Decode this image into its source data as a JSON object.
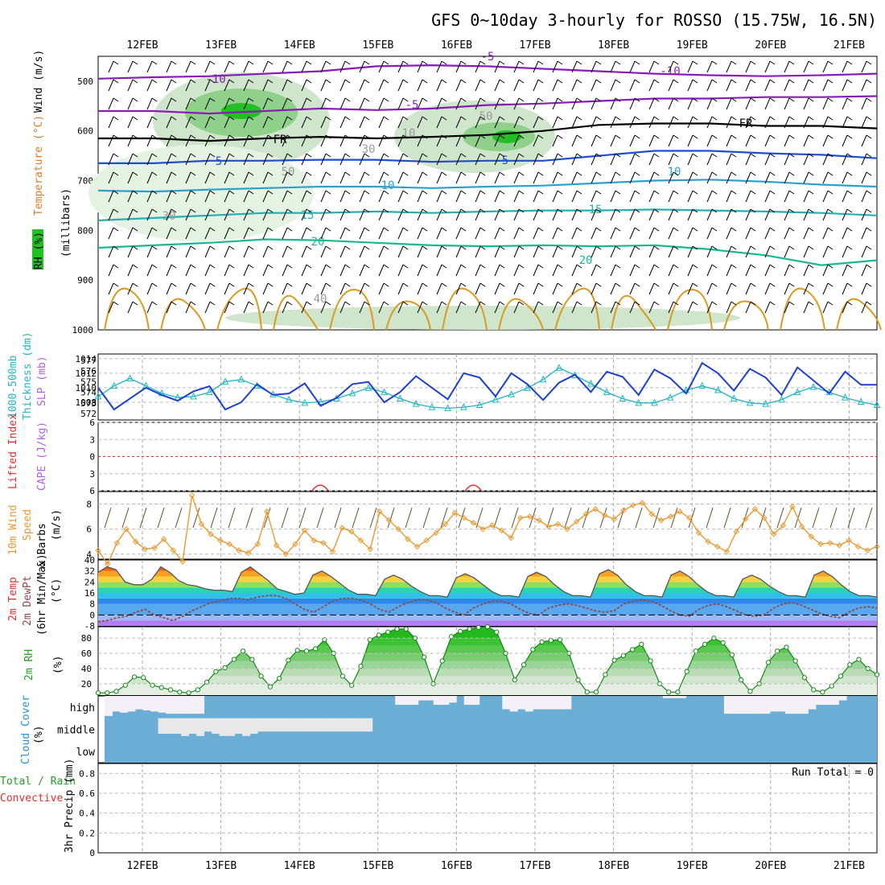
{
  "title": "GFS 0~10day 3-hourly for ROSSO (15.75W, 16.5N)",
  "dates": [
    "12FEB",
    "13FEB",
    "14FEB",
    "15FEB",
    "16FEB",
    "17FEB",
    "18FEB",
    "19FEB",
    "20FEB",
    "21FEB"
  ],
  "colors": {
    "thickness": "#22b5c4",
    "slp": "#1f3fcf",
    "li": "#e03030",
    "cape": "#b060e0",
    "wind10": "#e89a30",
    "rh_fill": "#22c022",
    "cloud": "#6aaed6",
    "temp_dark": "#888888"
  },
  "chart_data": [
    {
      "type": "contour-section",
      "panel": "upper_air",
      "ylabel_parts": [
        "RH (%)",
        "Temperature (°C)",
        "Wind (m/s)"
      ],
      "ylabel_mb": "(millibars)",
      "y_axis_mb": [
        "500",
        "600",
        "700",
        "800",
        "900",
        "1000"
      ],
      "ylim": [
        450,
        1000
      ],
      "temperature_contours": [
        {
          "label": "-10",
          "level_mb": [
            495,
            492,
            490,
            485,
            480,
            470,
            468,
            470,
            475,
            480,
            485,
            488,
            490,
            488,
            485
          ]
        },
        {
          "label": "-5",
          "level_mb": [
            560,
            560,
            565,
            560,
            555,
            558,
            555,
            548,
            545,
            540,
            535,
            535,
            532,
            532,
            530
          ]
        },
        {
          "label": "FR",
          "level_mb": [
            615,
            615,
            620,
            615,
            612,
            615,
            612,
            608,
            600,
            588,
            585,
            585,
            590,
            590,
            595
          ]
        },
        {
          "label": "5",
          "level_mb": [
            665,
            665,
            660,
            660,
            658,
            658,
            662,
            660,
            660,
            650,
            640,
            640,
            645,
            648,
            655
          ]
        },
        {
          "label": "10",
          "level_mb": [
            720,
            722,
            718,
            715,
            712,
            712,
            715,
            712,
            710,
            705,
            700,
            698,
            702,
            708,
            712
          ]
        },
        {
          "label": "15",
          "level_mb": [
            780,
            775,
            770,
            765,
            765,
            762,
            765,
            762,
            760,
            760,
            758,
            760,
            762,
            765,
            770
          ]
        },
        {
          "label": "20",
          "level_mb": [
            835,
            830,
            825,
            818,
            820,
            825,
            830,
            832,
            830,
            832,
            830,
            838,
            850,
            870,
            860
          ]
        }
      ],
      "contour_labels": [
        "-10",
        "-5",
        "FR",
        "5",
        "10",
        "15",
        "20",
        "20",
        "-10",
        "-5",
        "FR",
        "5",
        "10",
        "15",
        "50",
        "30",
        "30",
        "50",
        "10",
        "40"
      ],
      "rh_labels": [
        "30",
        "50",
        "30",
        "50",
        "10",
        "40"
      ]
    },
    {
      "type": "line",
      "panel": "thickness_slp",
      "ylabel_parts": [
        "1000-500mb",
        "Thickness (dm)",
        "SLP (mb)"
      ],
      "thickness_ticks": [
        "572",
        "573",
        "574",
        "575",
        "576",
        "577"
      ],
      "slp_ticks": [
        "1008",
        "1010",
        "1012",
        "1014"
      ],
      "thickness_dm": [
        573.6,
        574.6,
        575.3,
        574.6,
        573.9,
        573.5,
        573.6,
        574.0,
        575.0,
        575.2,
        574.6,
        573.8,
        573.3,
        573.0,
        573.1,
        573.4,
        573.9,
        574.4,
        574.0,
        573.4,
        572.9,
        572.6,
        572.5,
        572.6,
        572.8,
        573.3,
        573.8,
        574.4,
        575.2,
        576.3,
        575.6,
        574.8,
        574.0,
        573.4,
        573.0,
        573.0,
        573.5,
        574.2,
        574.6,
        574.2,
        573.4,
        573.0,
        572.9,
        573.3,
        574.0,
        574.5,
        574.0,
        573.5,
        573.1,
        572.8
      ],
      "slp_mb": [
        1010.0,
        1007.0,
        1008.5,
        1010.0,
        1009.0,
        1008.2,
        1009.5,
        1010.2,
        1007.0,
        1008.0,
        1010.5,
        1009.0,
        1009.2,
        1010.6,
        1007.5,
        1008.6,
        1010.5,
        1010.8,
        1008.0,
        1009.4,
        1011.6,
        1010.0,
        1008.4,
        1012.0,
        1011.4,
        1008.8,
        1012.0,
        1010.5,
        1008.3,
        1010.7,
        1011.8,
        1009.4,
        1012.2,
        1011.5,
        1009.0,
        1012.5,
        1011.3,
        1009.2,
        1013.4,
        1012.0,
        1009.6,
        1012.6,
        1011.4,
        1009.0,
        1012.8,
        1011.0,
        1009.2,
        1012.2,
        1010.4,
        1010.4
      ]
    },
    {
      "type": "line",
      "panel": "stability",
      "ylabel_parts": [
        "Lifted Index",
        "CAPE (J/kg)"
      ],
      "li_ticks": [
        "-6",
        "-3",
        "0",
        "3",
        "6"
      ],
      "li_zero_line": 0,
      "cape_bumps_at_days": [
        2.65,
        4.6
      ],
      "cape_values": [
        0,
        0,
        0,
        0,
        0,
        0,
        0,
        0,
        0,
        0
      ]
    },
    {
      "type": "line",
      "panel": "wind10m",
      "ylabel_parts": [
        "10m Wind",
        "Speed",
        "(m/s)",
        "& Barbs"
      ],
      "ticks": [
        "4",
        "6",
        "8"
      ],
      "ylim": [
        3.6,
        9
      ],
      "speed_ms": [
        4.3,
        3.2,
        4.9,
        6.0,
        5.0,
        4.4,
        4.5,
        5.2,
        4.3,
        3.4,
        8.7,
        6.4,
        5.6,
        5.1,
        4.8,
        4.3,
        4.1,
        4.8,
        7.4,
        4.7,
        4.0,
        4.8,
        5.9,
        5.1,
        4.9,
        4.2,
        6.1,
        5.8,
        5.1,
        4.4,
        7.4,
        6.7,
        6.0,
        5.2,
        4.6,
        5.1,
        5.7,
        6.4,
        7.3,
        6.9,
        6.5,
        6.0,
        6.3,
        5.9,
        5.3,
        6.9,
        7.0,
        6.7,
        6.2,
        6.4,
        6.0,
        6.6,
        7.2,
        7.6,
        7.1,
        6.8,
        7.5,
        7.9,
        8.1,
        7.2,
        6.7,
        7.0,
        7.4,
        6.9,
        5.7,
        5.0,
        4.6,
        4.2,
        5.8,
        6.8,
        7.6,
        6.9,
        5.6,
        6.3,
        7.8,
        6.2,
        5.4,
        4.8,
        4.9,
        4.7,
        5.1,
        4.6,
        4.3,
        4.6
      ]
    },
    {
      "type": "area",
      "panel": "temp_dewpoint",
      "ylabel_parts": [
        "2m Temp",
        "2m DewPt",
        "(6hr Min/Max)",
        "(°C)"
      ],
      "ticks": [
        "-8",
        "0",
        "8",
        "16",
        "24",
        "32",
        "40"
      ],
      "ylim": [
        -8,
        40
      ],
      "temp_c": [
        31,
        35,
        33,
        24,
        22,
        22,
        26,
        35,
        31,
        25,
        22,
        21,
        19,
        18,
        18,
        17,
        31,
        35,
        30,
        25,
        19,
        17,
        15,
        16,
        29,
        32,
        28,
        23,
        18,
        15,
        15,
        14,
        26,
        29,
        26,
        21,
        17,
        14,
        14,
        13,
        27,
        30,
        27,
        22,
        17,
        14,
        14,
        13,
        28,
        31,
        28,
        22,
        17,
        14,
        14,
        13,
        30,
        33,
        29,
        22,
        17,
        14,
        14,
        13,
        29,
        32,
        28,
        22,
        17,
        14,
        14,
        13,
        26,
        29,
        26,
        21,
        17,
        14,
        14,
        13,
        29,
        32,
        28,
        22,
        17,
        14,
        14,
        13
      ],
      "dew_c": [
        -5,
        -4,
        -2,
        -1,
        2,
        4,
        0,
        -2,
        -4,
        -1,
        3,
        6,
        9,
        10,
        12,
        12,
        11,
        13,
        14,
        14,
        12,
        8,
        4,
        2,
        6,
        10,
        12,
        12,
        11,
        8,
        4,
        2,
        6,
        9,
        11,
        11,
        9,
        5,
        2,
        0,
        5,
        8,
        10,
        10,
        8,
        4,
        1,
        0,
        5,
        7,
        8,
        7,
        5,
        3,
        2,
        3,
        8,
        10,
        11,
        10,
        7,
        3,
        0,
        -1,
        4,
        7,
        8,
        6,
        3,
        0,
        -1,
        0,
        5,
        8,
        9,
        7,
        4,
        1,
        -1,
        -2,
        2,
        5,
        6,
        5
      ]
    },
    {
      "type": "area",
      "panel": "rh2m",
      "ylabel_parts": [
        "2m RH",
        "(%)"
      ],
      "ticks": [
        "20",
        "40",
        "60",
        "80"
      ],
      "ylim": [
        5,
        95
      ],
      "rh_pct": [
        8,
        8,
        10,
        18,
        29,
        28,
        18,
        15,
        12,
        9,
        8,
        12,
        22,
        36,
        41,
        52,
        63,
        52,
        30,
        16,
        27,
        51,
        64,
        63,
        66,
        78,
        60,
        30,
        18,
        43,
        78,
        84,
        88,
        92,
        92,
        80,
        55,
        20,
        50,
        82,
        89,
        92,
        94,
        95,
        88,
        60,
        25,
        45,
        65,
        75,
        77,
        78,
        60,
        25,
        9,
        9,
        32,
        51,
        57,
        65,
        72,
        50,
        20,
        9,
        9,
        36,
        63,
        72,
        80,
        74,
        58,
        25,
        10,
        20,
        48,
        63,
        68,
        50,
        28,
        12,
        9,
        17,
        30,
        45,
        52,
        40,
        32
      ]
    },
    {
      "type": "area",
      "panel": "cloud_cover",
      "ylabel_parts": [
        "Cloud Cover",
        "(%)"
      ],
      "levels": [
        "high",
        "middle",
        "low"
      ],
      "high_pct": [
        90,
        70,
        75,
        70,
        60,
        65,
        70,
        75,
        80,
        80,
        80,
        80,
        80,
        0,
        0,
        0,
        0,
        0,
        0,
        0,
        0,
        0,
        0,
        0,
        0,
        0,
        0,
        0,
        0,
        0,
        0,
        0,
        0,
        0,
        0,
        0,
        0,
        0,
        40,
        40,
        40,
        20,
        20,
        40,
        40,
        30,
        0,
        40,
        40,
        0,
        0,
        0,
        60,
        70,
        60,
        70,
        60,
        60,
        60,
        60,
        60,
        0,
        0,
        0,
        0,
        0,
        0,
        0,
        0,
        0,
        0,
        0,
        0,
        10,
        10,
        10,
        0,
        0,
        0,
        0,
        0,
        80,
        80,
        80,
        80,
        80,
        80,
        70,
        70,
        80,
        80,
        80,
        60,
        40,
        40,
        40,
        20,
        0,
        0,
        0,
        0
      ],
      "middle_pct": [
        0,
        0,
        0,
        0,
        0,
        0,
        0,
        70,
        70,
        70,
        80,
        70,
        80,
        60,
        70,
        80,
        80,
        70,
        80,
        70,
        60,
        60,
        60,
        60,
        60,
        60,
        60,
        60,
        60,
        60,
        60,
        60,
        60,
        60,
        60,
        0,
        0,
        0,
        0,
        0,
        0,
        0,
        0,
        0,
        0,
        0,
        0,
        0,
        0,
        0,
        0,
        0,
        0,
        0,
        0,
        0,
        0,
        0,
        0,
        0,
        0,
        0,
        0,
        0,
        0,
        0,
        0,
        0,
        0,
        0,
        0,
        0,
        0,
        0,
        0,
        0,
        0,
        0,
        0,
        0,
        0,
        0,
        0,
        0,
        0,
        0,
        0,
        0,
        0,
        0,
        0,
        0,
        0,
        0,
        0,
        0,
        0,
        0,
        0,
        0,
        0
      ],
      "low_pct": [
        0
      ]
    },
    {
      "type": "bar",
      "panel": "precip",
      "ylabel_parts": [
        "Total / Rain",
        "Convective",
        "3hr Precip (mm)"
      ],
      "ticks": [
        "0",
        "0.2",
        "0.4",
        "0.6",
        "0.8"
      ],
      "ylim": [
        0,
        0.9
      ],
      "precip_mm": [
        0
      ],
      "run_total": "Run Total = 0"
    }
  ]
}
